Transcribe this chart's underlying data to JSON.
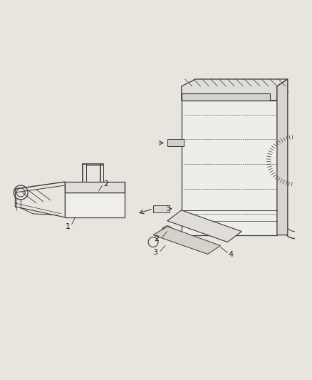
{
  "background_color": "#ffffff",
  "line_color": "#3a3a3a",
  "text_color": "#1a1a1a",
  "figsize": [
    4.38,
    5.33
  ],
  "dpi": 100,
  "fig_bg": "#e8e4de"
}
